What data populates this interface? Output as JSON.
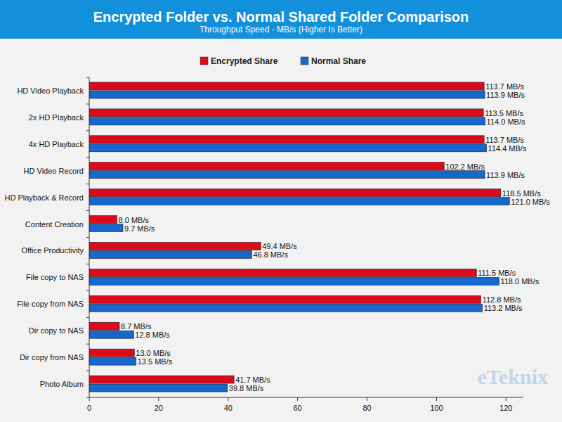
{
  "chart_data": {
    "type": "bar",
    "orientation": "horizontal",
    "title": "Encrypted Folder vs. Normal Shared Folder Comparison",
    "subtitle": "Throughput Speed - MB/s (Higher Is Better)",
    "categories": [
      "HD Video Playback",
      "2x HD Playback",
      "4x HD Playback",
      "HD Video Record",
      "HD Playback & Record",
      "Content Creation",
      "Office Productivity",
      "File copy to NAS",
      "File copy from NAS",
      "Dir copy to NAS",
      "Dir copy from NAS",
      "Photo Album"
    ],
    "series": [
      {
        "name": "Encrypted Share",
        "color": "#dc0a1b",
        "values": [
          113.7,
          113.5,
          113.7,
          102.2,
          118.5,
          8.0,
          49.4,
          111.5,
          112.8,
          8.7,
          13.0,
          41.7
        ],
        "value_labels": [
          "113.7 MB/s",
          "113.5 MB/s",
          "113.7 MB/s",
          "102.2 MB/s",
          "118.5 MB/s",
          "8.0 MB/s",
          "49.4 MB/s",
          "111.5 MB/s",
          "112.8 MB/s",
          "8.7 MB/s",
          "13.0 MB/s",
          "41.7 MB/s"
        ]
      },
      {
        "name": "Normal Share",
        "color": "#1668cc",
        "values": [
          113.9,
          114.0,
          114.4,
          113.9,
          121.0,
          9.7,
          46.8,
          118.0,
          113.2,
          12.8,
          13.5,
          39.8
        ],
        "value_labels": [
          "113.9 MB/s",
          "114.0 MB/s",
          "114.4 MB/s",
          "113.9 MB/s",
          "121.0 MB/s",
          "9.7 MB/s",
          "46.8 MB/s",
          "118.0 MB/s",
          "113.2 MB/s",
          "12.8 MB/s",
          "13.5 MB/s",
          "39.8 MB/s"
        ]
      }
    ],
    "xlim": [
      0,
      125
    ],
    "xticks": [
      0,
      20,
      40,
      60,
      80,
      100,
      120
    ],
    "grid": false,
    "legend": "top",
    "data_labels": true,
    "annotations": [
      "eTeknix"
    ]
  }
}
